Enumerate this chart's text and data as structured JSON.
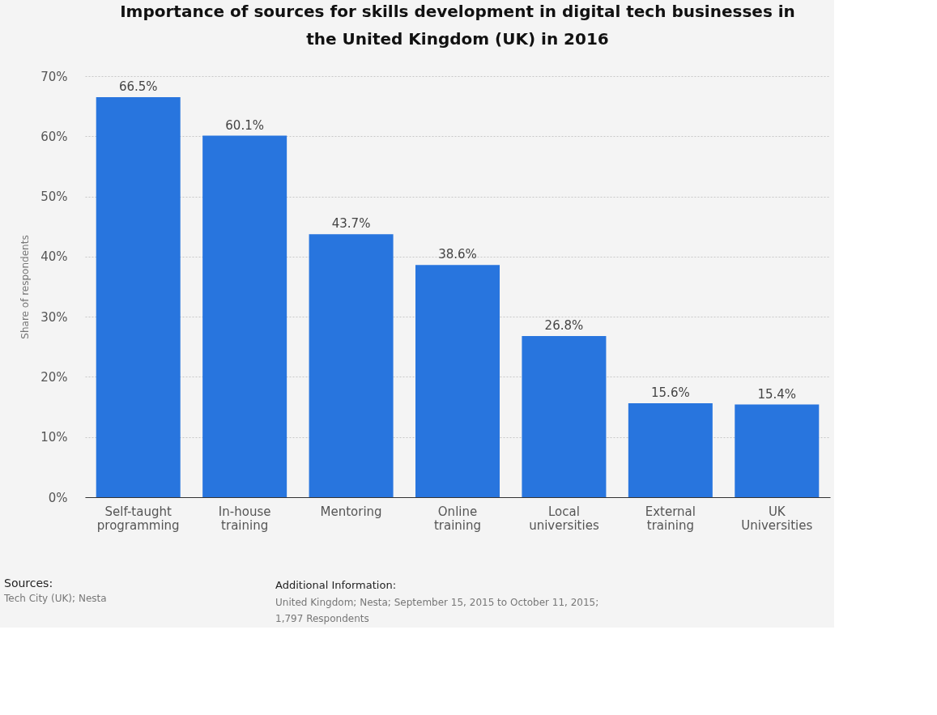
{
  "chart_data": {
    "type": "bar",
    "title": "Importance of sources for skills development in digital tech businesses in the United Kingdom (UK) in 2016",
    "ylabel": "Share of respondents",
    "categories": [
      "Self-taught programming",
      "In-house training",
      "Mentoring",
      "Online training",
      "Local universities",
      "External training",
      "UK Universities"
    ],
    "values": [
      66.5,
      60.1,
      43.7,
      38.6,
      26.8,
      15.6,
      15.4
    ],
    "value_labels": [
      "66.5%",
      "60.1%",
      "43.7%",
      "38.6%",
      "26.8%",
      "15.6%",
      "15.4%"
    ],
    "color": "#2875de",
    "ylim": [
      0,
      70
    ],
    "yticks": [
      {
        "value": 0,
        "label": "0%"
      },
      {
        "value": 10,
        "label": "10%"
      },
      {
        "value": 20,
        "label": "20%"
      },
      {
        "value": 30,
        "label": "30%"
      },
      {
        "value": 40,
        "label": "40%"
      },
      {
        "value": 50,
        "label": "50%"
      },
      {
        "value": 60,
        "label": "60%"
      },
      {
        "value": 70,
        "label": "70%"
      }
    ],
    "grid": "y",
    "annotations": [
      "Sources:",
      "Tech City (UK); Nesta",
      "Additional Information:",
      "United Kingdom; Nesta; September 15, 2015 to October 11, 2015; 1,797 Respondents"
    ]
  }
}
